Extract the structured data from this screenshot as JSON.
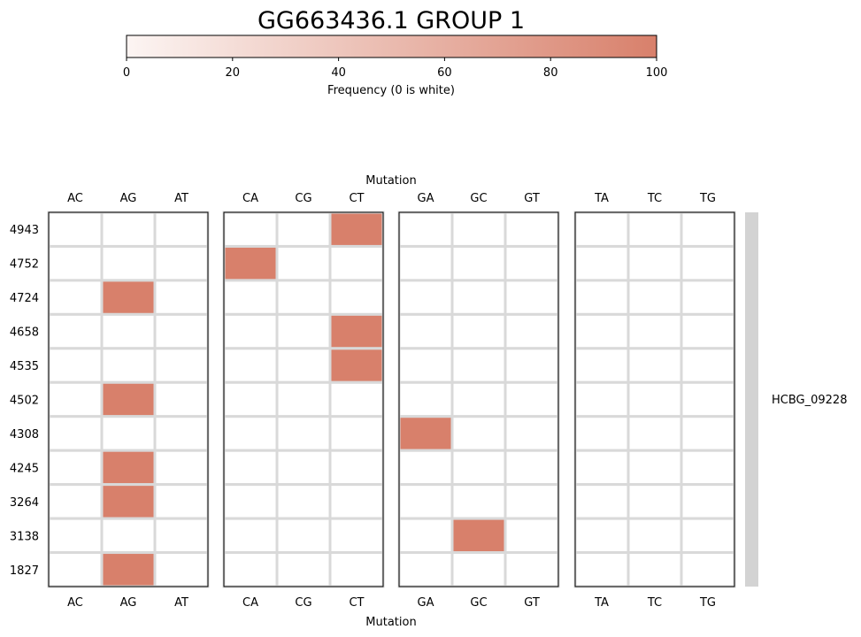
{
  "chart_data": {
    "type": "heatmap",
    "title": "GG663436.1 GROUP 1",
    "xlabel": "Mutation",
    "colorbar": {
      "label": "Frequency (0 is white)",
      "range": [
        0,
        100
      ],
      "ticks": [
        0,
        20,
        40,
        60,
        80,
        100
      ],
      "color_min": "#fcf5f3",
      "color_max": "#d8806b"
    },
    "panels": [
      {
        "columns": [
          "AC",
          "AG",
          "AT"
        ]
      },
      {
        "columns": [
          "CA",
          "CG",
          "CT"
        ]
      },
      {
        "columns": [
          "GA",
          "GC",
          "GT"
        ]
      },
      {
        "columns": [
          "TA",
          "TC",
          "TG"
        ]
      }
    ],
    "rows": [
      "4943",
      "4752",
      "4724",
      "4658",
      "4535",
      "4502",
      "4308",
      "4245",
      "3264",
      "3138",
      "1827"
    ],
    "gene_label": "HCBG_09228",
    "gene_bar_color": "#d3d3d3",
    "cells": [
      {
        "row": "4943",
        "mutation": "CT",
        "value": 100
      },
      {
        "row": "4752",
        "mutation": "CA",
        "value": 100
      },
      {
        "row": "4724",
        "mutation": "AG",
        "value": 100
      },
      {
        "row": "4658",
        "mutation": "CT",
        "value": 100
      },
      {
        "row": "4535",
        "mutation": "CT",
        "value": 100
      },
      {
        "row": "4502",
        "mutation": "AG",
        "value": 100
      },
      {
        "row": "4308",
        "mutation": "GA",
        "value": 100
      },
      {
        "row": "4245",
        "mutation": "AG",
        "value": 100
      },
      {
        "row": "3264",
        "mutation": "AG",
        "value": 100
      },
      {
        "row": "3138",
        "mutation": "GC",
        "value": 100
      },
      {
        "row": "1827",
        "mutation": "AG",
        "value": 100
      }
    ],
    "grid_color": "#d9d9d9"
  }
}
